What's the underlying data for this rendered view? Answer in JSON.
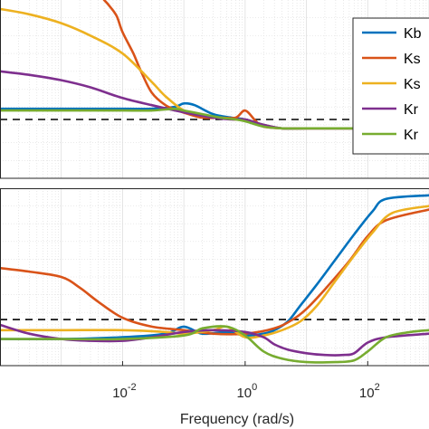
{
  "chart_data": [
    {
      "panel": "top",
      "type": "line",
      "xscale": "log",
      "xlim": [
        0.0001,
        1000
      ],
      "ylim": [
        0,
        1
      ],
      "grid": true,
      "legend": {
        "placement": "top-right",
        "entries": [
          "Kb",
          "Ks",
          "Ks",
          "Kr",
          "Kr"
        ]
      },
      "reference_line": {
        "y": 0.33,
        "style": "dashed",
        "color": "#000000"
      },
      "series": [
        {
          "name": "Kb",
          "color": "#0072BD",
          "x": [
            0.0001,
            0.001,
            0.01,
            0.03,
            0.07,
            0.1,
            0.15,
            0.3,
            0.6,
            1,
            2,
            4,
            10,
            100,
            1000
          ],
          "y": [
            0.39,
            0.39,
            0.39,
            0.39,
            0.4,
            0.42,
            0.41,
            0.36,
            0.34,
            0.33,
            0.3,
            0.28,
            0.28,
            0.28,
            0.28
          ]
        },
        {
          "name": "Ks",
          "color": "#D95319",
          "x": [
            0.005,
            0.006,
            0.008,
            0.01,
            0.015,
            0.02,
            0.03,
            0.05,
            0.08,
            0.12,
            0.2,
            0.4,
            0.7,
            1,
            1.5,
            2,
            4,
            10,
            100,
            1000
          ],
          "y": [
            1.0,
            0.97,
            0.91,
            0.82,
            0.7,
            0.6,
            0.48,
            0.41,
            0.38,
            0.36,
            0.34,
            0.34,
            0.34,
            0.38,
            0.32,
            0.29,
            0.28,
            0.28,
            0.28,
            0.28
          ]
        },
        {
          "name": "Ks",
          "color": "#EDB120",
          "x": [
            0.0001,
            0.0003,
            0.001,
            0.003,
            0.01,
            0.03,
            0.05,
            0.1,
            0.2,
            0.4,
            0.7,
            1,
            2,
            4,
            10,
            100,
            1000
          ],
          "y": [
            0.95,
            0.92,
            0.87,
            0.8,
            0.7,
            0.54,
            0.46,
            0.38,
            0.35,
            0.34,
            0.33,
            0.33,
            0.3,
            0.28,
            0.28,
            0.28,
            0.28
          ]
        },
        {
          "name": "Kr",
          "color": "#7E2F8E",
          "x": [
            0.0001,
            0.0003,
            0.001,
            0.003,
            0.01,
            0.03,
            0.1,
            0.3,
            0.6,
            1,
            2,
            4,
            10,
            100,
            1000
          ],
          "y": [
            0.6,
            0.58,
            0.55,
            0.51,
            0.45,
            0.41,
            0.37,
            0.34,
            0.33,
            0.33,
            0.3,
            0.28,
            0.28,
            0.28,
            0.28
          ]
        },
        {
          "name": "Kr",
          "color": "#77AC30",
          "x": [
            0.0001,
            0.001,
            0.01,
            0.03,
            0.07,
            0.1,
            0.2,
            0.4,
            0.7,
            1,
            2,
            4,
            10,
            100,
            1000
          ],
          "y": [
            0.38,
            0.38,
            0.38,
            0.38,
            0.39,
            0.38,
            0.36,
            0.34,
            0.33,
            0.32,
            0.29,
            0.28,
            0.28,
            0.28,
            0.28
          ]
        }
      ]
    },
    {
      "panel": "bottom",
      "type": "line",
      "xscale": "log",
      "xlim": [
        0.0001,
        1000
      ],
      "ylim": [
        0,
        1
      ],
      "grid": true,
      "xlabel": "Frequency (rad/s)",
      "xticks": [
        0.01,
        1,
        100
      ],
      "xtick_labels": [
        {
          "base": "10",
          "exp": "-2"
        },
        {
          "base": "10",
          "exp": "0"
        },
        {
          "base": "10",
          "exp": "2"
        }
      ],
      "reference_line": {
        "y": 0.26,
        "style": "dashed",
        "color": "#000000"
      },
      "series": [
        {
          "name": "Kb",
          "color": "#0072BD",
          "x": [
            0.0001,
            0.001,
            0.01,
            0.05,
            0.1,
            0.2,
            0.5,
            1,
            2,
            3,
            5,
            8,
            15,
            30,
            60,
            120,
            200,
            1000
          ],
          "y": [
            0.15,
            0.15,
            0.16,
            0.18,
            0.22,
            0.18,
            0.19,
            0.17,
            0.18,
            0.2,
            0.25,
            0.34,
            0.46,
            0.6,
            0.74,
            0.87,
            0.94,
            0.96
          ]
        },
        {
          "name": "Ks",
          "color": "#D95319",
          "x": [
            0.0001,
            0.0003,
            0.001,
            0.002,
            0.004,
            0.01,
            0.03,
            0.1,
            0.3,
            1,
            3,
            6,
            10,
            20,
            50,
            100,
            200,
            1000
          ],
          "y": [
            0.55,
            0.53,
            0.5,
            0.44,
            0.36,
            0.27,
            0.22,
            0.2,
            0.18,
            0.18,
            0.21,
            0.26,
            0.32,
            0.43,
            0.59,
            0.73,
            0.82,
            0.88
          ]
        },
        {
          "name": "Ks",
          "color": "#EDB120",
          "x": [
            0.0001,
            0.001,
            0.01,
            0.05,
            0.1,
            0.3,
            0.5,
            1,
            2,
            4,
            8,
            15,
            30,
            60,
            120,
            250,
            1000
          ],
          "y": [
            0.2,
            0.2,
            0.2,
            0.19,
            0.18,
            0.2,
            0.22,
            0.16,
            0.17,
            0.2,
            0.25,
            0.34,
            0.48,
            0.62,
            0.75,
            0.86,
            0.9
          ]
        },
        {
          "name": "Kr",
          "color": "#7E2F8E",
          "x": [
            0.0001,
            0.0003,
            0.001,
            0.003,
            0.01,
            0.03,
            0.1,
            0.3,
            1,
            2,
            3,
            5,
            10,
            20,
            40,
            60,
            100,
            200,
            1000
          ],
          "y": [
            0.23,
            0.18,
            0.15,
            0.14,
            0.14,
            0.16,
            0.19,
            0.2,
            0.19,
            0.16,
            0.12,
            0.09,
            0.07,
            0.06,
            0.06,
            0.07,
            0.13,
            0.16,
            0.18
          ]
        },
        {
          "name": "Kr",
          "color": "#77AC30",
          "x": [
            0.0001,
            0.001,
            0.01,
            0.1,
            0.2,
            0.5,
            1,
            2,
            4,
            10,
            30,
            60,
            100,
            200,
            500,
            1000
          ],
          "y": [
            0.15,
            0.15,
            0.15,
            0.17,
            0.21,
            0.22,
            0.17,
            0.08,
            0.04,
            0.02,
            0.02,
            0.03,
            0.08,
            0.16,
            0.19,
            0.2
          ]
        }
      ]
    }
  ]
}
